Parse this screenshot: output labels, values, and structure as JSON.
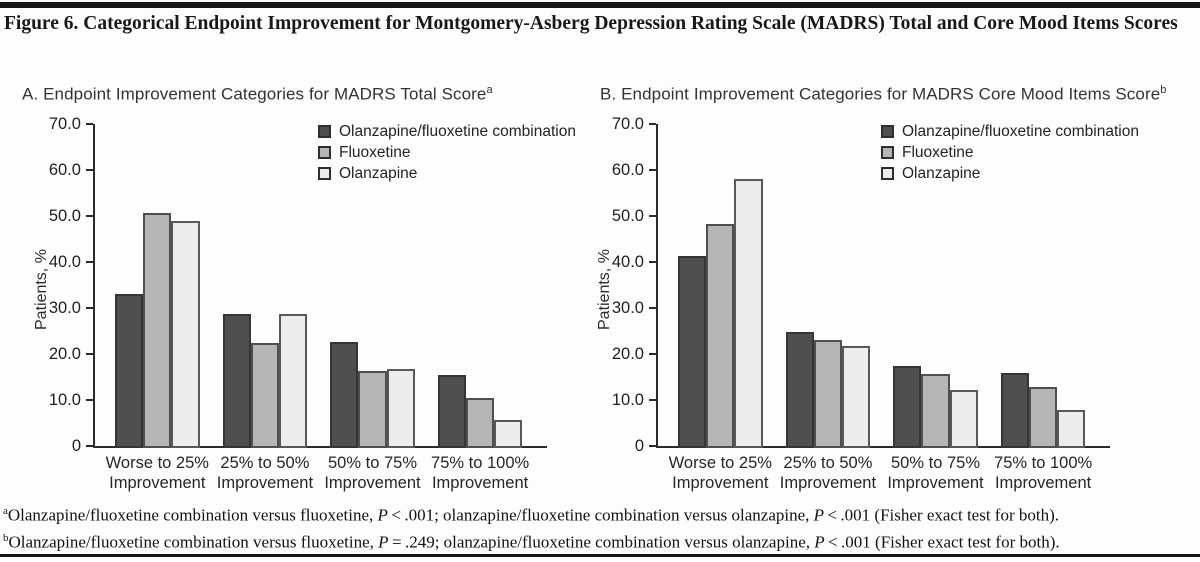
{
  "figure": {
    "title": "Figure 6. Categorical Endpoint Improvement for Montgomery-Asberg Depression Rating Scale (MADRS) Total and Core Mood Items Scores"
  },
  "colors": {
    "axis": "#2b2b2b",
    "series_fills": [
      "#4f4f4f",
      "#b5b5b5",
      "#ececec"
    ],
    "series_borders": [
      "#353535",
      "#4f4f4f",
      "#585858"
    ]
  },
  "legend": {
    "items": [
      {
        "label": "Olanzapine/fluoxetine combination"
      },
      {
        "label": "Fluoxetine"
      },
      {
        "label": "Olanzapine"
      }
    ]
  },
  "chart_data": [
    {
      "type": "bar",
      "title": "A. Endpoint Improvement Categories for MADRS Total Score",
      "title_sup": "a",
      "ylabel": "Patients, %",
      "ylim": [
        0,
        70
      ],
      "ytick_labels": [
        "70.0",
        "60.0",
        "50.0",
        "40.0",
        "30.0",
        "20.0",
        "10.0",
        "0"
      ],
      "grid": false,
      "legend_position": "top-right",
      "categories": [
        [
          "Worse to 25%",
          "Improvement"
        ],
        [
          "25% to 50%",
          "Improvement"
        ],
        [
          "50% to 75%",
          "Improvement"
        ],
        [
          "75% to 100%",
          "Improvement"
        ]
      ],
      "series": [
        {
          "name": "Olanzapine/fluoxetine combination",
          "values": [
            33.0,
            28.8,
            22.6,
            15.4
          ]
        },
        {
          "name": "Fluoxetine",
          "values": [
            50.6,
            22.4,
            16.3,
            10.4
          ]
        },
        {
          "name": "Olanzapine",
          "values": [
            49.0,
            28.6,
            16.7,
            5.6
          ]
        }
      ]
    },
    {
      "type": "bar",
      "title": "B. Endpoint Improvement Categories for MADRS Core Mood Items Score",
      "title_sup": "b",
      "ylabel": "Patients, %",
      "ylim": [
        0,
        70
      ],
      "ytick_labels": [
        "70.0",
        "60.0",
        "50.0",
        "40.0",
        "30.0",
        "20.0",
        "10.0",
        "0"
      ],
      "grid": false,
      "legend_position": "top-right",
      "categories": [
        [
          "Worse to 25%",
          "Improvement"
        ],
        [
          "25% to 50%",
          "Improvement"
        ],
        [
          "50% to 75%",
          "Improvement"
        ],
        [
          "75% to 100%",
          "Improvement"
        ]
      ],
      "series": [
        {
          "name": "Olanzapine/fluoxetine combination",
          "values": [
            41.3,
            24.8,
            17.5,
            15.9
          ]
        },
        {
          "name": "Fluoxetine",
          "values": [
            48.2,
            23.0,
            15.7,
            12.8
          ]
        },
        {
          "name": "Olanzapine",
          "values": [
            58.0,
            21.8,
            12.2,
            7.8
          ]
        }
      ]
    }
  ],
  "footnotes": [
    {
      "sup": "a",
      "segments": [
        {
          "t": "Olanzapine/fluoxetine combination versus fluoxetine, "
        },
        {
          "t": "P",
          "i": true
        },
        {
          "t": " < .001; olanzapine/fluoxetine combination versus olanzapine, "
        },
        {
          "t": "P",
          "i": true
        },
        {
          "t": " < .001 (Fisher exact test for both)."
        }
      ]
    },
    {
      "sup": "b",
      "segments": [
        {
          "t": "Olanzapine/fluoxetine combination versus fluoxetine, "
        },
        {
          "t": "P",
          "i": true
        },
        {
          "t": " = .249; olanzapine/fluoxetine combination versus olanzapine, "
        },
        {
          "t": "P",
          "i": true
        },
        {
          "t": " < .001 (Fisher exact test for both)."
        }
      ]
    }
  ]
}
